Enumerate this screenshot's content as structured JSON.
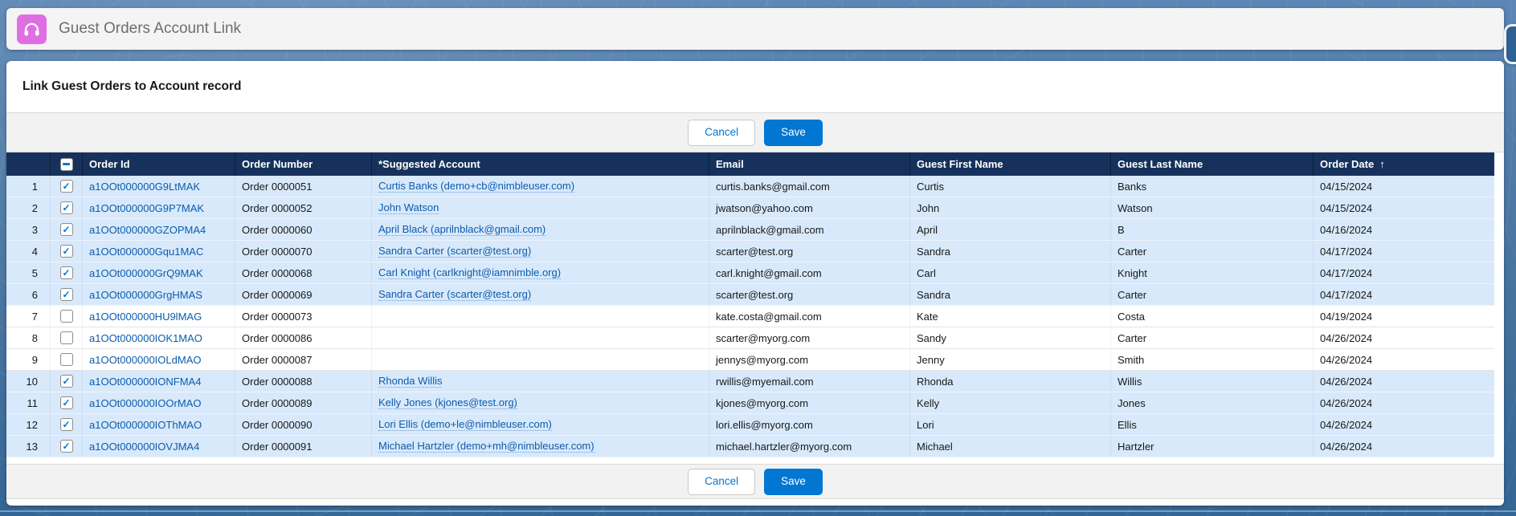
{
  "app": {
    "title": "Guest Orders Account Link"
  },
  "panel": {
    "heading": "Link Guest Orders to Account record"
  },
  "actions": {
    "cancel": "Cancel",
    "save": "Save"
  },
  "colors": {
    "accent_blue": "#0176d3",
    "link_blue": "#0b5cab",
    "table_header_bg": "#16325c",
    "selected_row_bg": "#d8e9fb",
    "app_icon_pink": "#e06ee3"
  },
  "table": {
    "headers": {
      "order_id": "Order Id",
      "order_number": "Order Number",
      "suggested_account": "*Suggested Account",
      "email": "Email",
      "first_name": "Guest First Name",
      "last_name": "Guest Last Name",
      "order_date": "Order Date",
      "sort_arrow": "↑"
    },
    "select_all_state": "indeterminate",
    "rows": [
      {
        "num": 1,
        "checked": true,
        "order_id": "a1OOt000000G9LtMAK",
        "order_number": "Order 0000051",
        "suggested_account": "Curtis Banks (demo+cb@nimbleuser.com)",
        "email": "curtis.banks@gmail.com",
        "first_name": "Curtis",
        "last_name": "Banks",
        "order_date": "04/15/2024"
      },
      {
        "num": 2,
        "checked": true,
        "order_id": "a1OOt000000G9P7MAK",
        "order_number": "Order 0000052",
        "suggested_account": "John Watson",
        "email": "jwatson@yahoo.com",
        "first_name": "John",
        "last_name": "Watson",
        "order_date": "04/15/2024"
      },
      {
        "num": 3,
        "checked": true,
        "order_id": "a1OOt000000GZOPMA4",
        "order_number": "Order 0000060",
        "suggested_account": "April Black (aprilnblack@gmail.com)",
        "email": "aprilnblack@gmail.com",
        "first_name": "April",
        "last_name": "B",
        "order_date": "04/16/2024"
      },
      {
        "num": 4,
        "checked": true,
        "order_id": "a1OOt000000Gqu1MAC",
        "order_number": "Order 0000070",
        "suggested_account": "Sandra Carter (scarter@test.org)",
        "email": "scarter@test.org",
        "first_name": "Sandra",
        "last_name": "Carter",
        "order_date": "04/17/2024"
      },
      {
        "num": 5,
        "checked": true,
        "order_id": "a1OOt000000GrQ9MAK",
        "order_number": "Order 0000068",
        "suggested_account": "Carl Knight (carlknight@iamnimble.org)",
        "email": "carl.knight@gmail.com",
        "first_name": "Carl",
        "last_name": "Knight",
        "order_date": "04/17/2024"
      },
      {
        "num": 6,
        "checked": true,
        "order_id": "a1OOt000000GrgHMAS",
        "order_number": "Order 0000069",
        "suggested_account": "Sandra Carter (scarter@test.org)",
        "email": "scarter@test.org",
        "first_name": "Sandra",
        "last_name": "Carter",
        "order_date": "04/17/2024"
      },
      {
        "num": 7,
        "checked": false,
        "order_id": "a1OOt000000HU9lMAG",
        "order_number": "Order 0000073",
        "suggested_account": "",
        "email": "kate.costa@gmail.com",
        "first_name": "Kate",
        "last_name": "Costa",
        "order_date": "04/19/2024"
      },
      {
        "num": 8,
        "checked": false,
        "order_id": "a1OOt000000IOK1MAO",
        "order_number": "Order 0000086",
        "suggested_account": "",
        "email": "scarter@myorg.com",
        "first_name": "Sandy",
        "last_name": "Carter",
        "order_date": "04/26/2024"
      },
      {
        "num": 9,
        "checked": false,
        "order_id": "a1OOt000000IOLdMAO",
        "order_number": "Order 0000087",
        "suggested_account": "",
        "email": "jennys@myorg.com",
        "first_name": "Jenny",
        "last_name": "Smith",
        "order_date": "04/26/2024"
      },
      {
        "num": 10,
        "checked": true,
        "order_id": "a1OOt000000IONFMA4",
        "order_number": "Order 0000088",
        "suggested_account": "Rhonda Willis",
        "email": "rwillis@myemail.com",
        "first_name": "Rhonda",
        "last_name": "Willis",
        "order_date": "04/26/2024"
      },
      {
        "num": 11,
        "checked": true,
        "order_id": "a1OOt000000IOOrMAO",
        "order_number": "Order 0000089",
        "suggested_account": "Kelly Jones (kjones@test.org)",
        "email": "kjones@myorg.com",
        "first_name": "Kelly",
        "last_name": "Jones",
        "order_date": "04/26/2024"
      },
      {
        "num": 12,
        "checked": true,
        "order_id": "a1OOt000000IOThMAO",
        "order_number": "Order 0000090",
        "suggested_account": "Lori Ellis (demo+le@nimbleuser.com)",
        "email": "lori.ellis@myorg.com",
        "first_name": "Lori",
        "last_name": "Ellis",
        "order_date": "04/26/2024"
      },
      {
        "num": 13,
        "checked": true,
        "order_id": "a1OOt000000IOVJMA4",
        "order_number": "Order 0000091",
        "suggested_account": "Michael Hartzler (demo+mh@nimbleuser.com)",
        "email": "michael.hartzler@myorg.com",
        "first_name": "Michael",
        "last_name": "Hartzler",
        "order_date": "04/26/2024"
      }
    ]
  }
}
